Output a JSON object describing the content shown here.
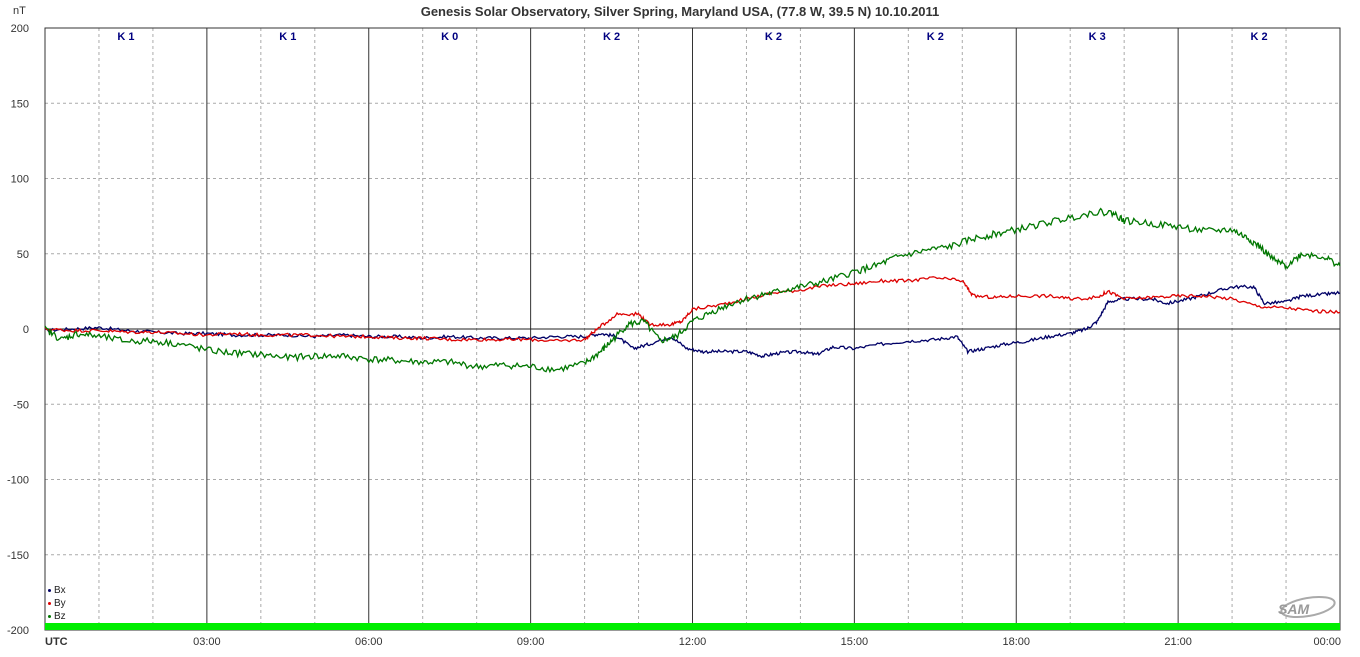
{
  "chart_data": {
    "type": "line",
    "title": "Genesis Solar Observatory, Silver Spring, Maryland USA, (77.8 W, 39.5 N)  10.10.2011",
    "ylabel": "nT",
    "xlabel": "UTC",
    "ylim": [
      -200,
      200
    ],
    "xlim": [
      0,
      24
    ],
    "yticks": [
      200,
      150,
      100,
      50,
      0,
      -50,
      -100,
      -150,
      -200
    ],
    "x_tick_labels": [
      "03:00",
      "06:00",
      "09:00",
      "12:00",
      "15:00",
      "18:00",
      "21:00",
      "00:00"
    ],
    "k_index": [
      "K 1",
      "K 1",
      "K 0",
      "K 2",
      "K 2",
      "K 2",
      "K 3",
      "K 2"
    ],
    "grid": true,
    "legend_position": "bottom-left",
    "series": [
      {
        "name": "Bx",
        "color": "#000066",
        "points": [
          [
            0,
            -1
          ],
          [
            0.5,
            0
          ],
          [
            1,
            1
          ],
          [
            1.5,
            -1
          ],
          [
            2,
            -2
          ],
          [
            2.5,
            -3
          ],
          [
            3,
            -3
          ],
          [
            3.5,
            -4
          ],
          [
            4,
            -4
          ],
          [
            4.5,
            -4
          ],
          [
            5,
            -5
          ],
          [
            5.5,
            -4
          ],
          [
            6,
            -5
          ],
          [
            6.5,
            -5
          ],
          [
            7,
            -6
          ],
          [
            7.5,
            -5
          ],
          [
            8,
            -6
          ],
          [
            8.5,
            -6
          ],
          [
            9,
            -6
          ],
          [
            9.5,
            -5
          ],
          [
            10,
            -5
          ],
          [
            10.3,
            -3
          ],
          [
            10.6,
            -5
          ],
          [
            10.9,
            -13
          ],
          [
            11.2,
            -10
          ],
          [
            11.6,
            -5
          ],
          [
            11.9,
            -13
          ],
          [
            12.2,
            -15
          ],
          [
            12.6,
            -15
          ],
          [
            13,
            -15
          ],
          [
            13.3,
            -18
          ],
          [
            13.6,
            -16
          ],
          [
            14,
            -15
          ],
          [
            14.3,
            -17
          ],
          [
            14.6,
            -12
          ],
          [
            15,
            -13
          ],
          [
            15.5,
            -10
          ],
          [
            16,
            -8
          ],
          [
            16.5,
            -7
          ],
          [
            16.9,
            -5
          ],
          [
            17.1,
            -15
          ],
          [
            17.4,
            -13
          ],
          [
            17.8,
            -10
          ],
          [
            18.2,
            -8
          ],
          [
            18.6,
            -5
          ],
          [
            19,
            -3
          ],
          [
            19.3,
            0
          ],
          [
            19.5,
            5
          ],
          [
            19.7,
            18
          ],
          [
            20,
            20
          ],
          [
            20.5,
            20
          ],
          [
            20.8,
            17
          ],
          [
            21.2,
            20
          ],
          [
            21.6,
            24
          ],
          [
            22,
            28
          ],
          [
            22.4,
            28
          ],
          [
            22.6,
            17
          ],
          [
            23,
            18
          ],
          [
            23.3,
            22
          ],
          [
            23.7,
            23
          ],
          [
            24,
            24
          ]
        ]
      },
      {
        "name": "By",
        "color": "#dd0000",
        "points": [
          [
            0,
            0
          ],
          [
            0.5,
            -1
          ],
          [
            1,
            -1
          ],
          [
            1.5,
            -2
          ],
          [
            2,
            -2
          ],
          [
            2.5,
            -3
          ],
          [
            3,
            -4
          ],
          [
            3.5,
            -3
          ],
          [
            4,
            -4
          ],
          [
            4.5,
            -4
          ],
          [
            5,
            -4
          ],
          [
            5.5,
            -5
          ],
          [
            6,
            -5
          ],
          [
            6.5,
            -6
          ],
          [
            7,
            -6
          ],
          [
            7.5,
            -7
          ],
          [
            8,
            -7
          ],
          [
            8.5,
            -7
          ],
          [
            9,
            -7
          ],
          [
            9.5,
            -8
          ],
          [
            10,
            -7
          ],
          [
            10.2,
            -1
          ],
          [
            10.6,
            10
          ],
          [
            11,
            10
          ],
          [
            11.2,
            3
          ],
          [
            11.6,
            3
          ],
          [
            11.8,
            5
          ],
          [
            12,
            13
          ],
          [
            12.5,
            16
          ],
          [
            13,
            20
          ],
          [
            13.5,
            24
          ],
          [
            14,
            26
          ],
          [
            14.5,
            29
          ],
          [
            15,
            30
          ],
          [
            15.5,
            32
          ],
          [
            16,
            32
          ],
          [
            16.5,
            34
          ],
          [
            17,
            32
          ],
          [
            17.2,
            22
          ],
          [
            17.6,
            21
          ],
          [
            18,
            22
          ],
          [
            18.6,
            22
          ],
          [
            19,
            20
          ],
          [
            19.5,
            21
          ],
          [
            19.7,
            25
          ],
          [
            20,
            20
          ],
          [
            20.5,
            21
          ],
          [
            21,
            22
          ],
          [
            21.5,
            22
          ],
          [
            22,
            20
          ],
          [
            22.5,
            15
          ],
          [
            23,
            14
          ],
          [
            23.5,
            12
          ],
          [
            24,
            11
          ]
        ]
      },
      {
        "name": "Bz",
        "color": "#007700",
        "points": [
          [
            0,
            0
          ],
          [
            0.3,
            -7
          ],
          [
            0.6,
            -3
          ],
          [
            1,
            -5
          ],
          [
            1.5,
            -8
          ],
          [
            2,
            -8
          ],
          [
            2.5,
            -10
          ],
          [
            3,
            -14
          ],
          [
            3.5,
            -16
          ],
          [
            4,
            -17
          ],
          [
            4.5,
            -19
          ],
          [
            5,
            -18
          ],
          [
            5.5,
            -18
          ],
          [
            6,
            -20
          ],
          [
            6.5,
            -21
          ],
          [
            7,
            -22
          ],
          [
            7.5,
            -22
          ],
          [
            8,
            -25
          ],
          [
            8.5,
            -24
          ],
          [
            9,
            -25
          ],
          [
            9.5,
            -27
          ],
          [
            10,
            -23
          ],
          [
            10.3,
            -15
          ],
          [
            10.5,
            -8
          ],
          [
            10.8,
            3
          ],
          [
            11.1,
            5
          ],
          [
            11.4,
            -8
          ],
          [
            11.7,
            -5
          ],
          [
            12,
            5
          ],
          [
            12.4,
            12
          ],
          [
            12.8,
            18
          ],
          [
            13.2,
            22
          ],
          [
            13.6,
            25
          ],
          [
            14,
            28
          ],
          [
            14.5,
            32
          ],
          [
            15,
            38
          ],
          [
            15.4,
            42
          ],
          [
            15.8,
            48
          ],
          [
            16.3,
            52
          ],
          [
            16.8,
            55
          ],
          [
            17.2,
            60
          ],
          [
            17.6,
            63
          ],
          [
            18,
            66
          ],
          [
            18.5,
            70
          ],
          [
            19,
            74
          ],
          [
            19.5,
            78
          ],
          [
            19.8,
            77
          ],
          [
            20,
            72
          ],
          [
            20.5,
            70
          ],
          [
            21,
            68
          ],
          [
            21.5,
            65
          ],
          [
            22,
            66
          ],
          [
            22.3,
            60
          ],
          [
            22.5,
            55
          ],
          [
            22.8,
            45
          ],
          [
            23,
            42
          ],
          [
            23.3,
            50
          ],
          [
            23.7,
            48
          ],
          [
            24,
            42
          ]
        ]
      }
    ]
  },
  "logo": {
    "text": "SAM"
  }
}
